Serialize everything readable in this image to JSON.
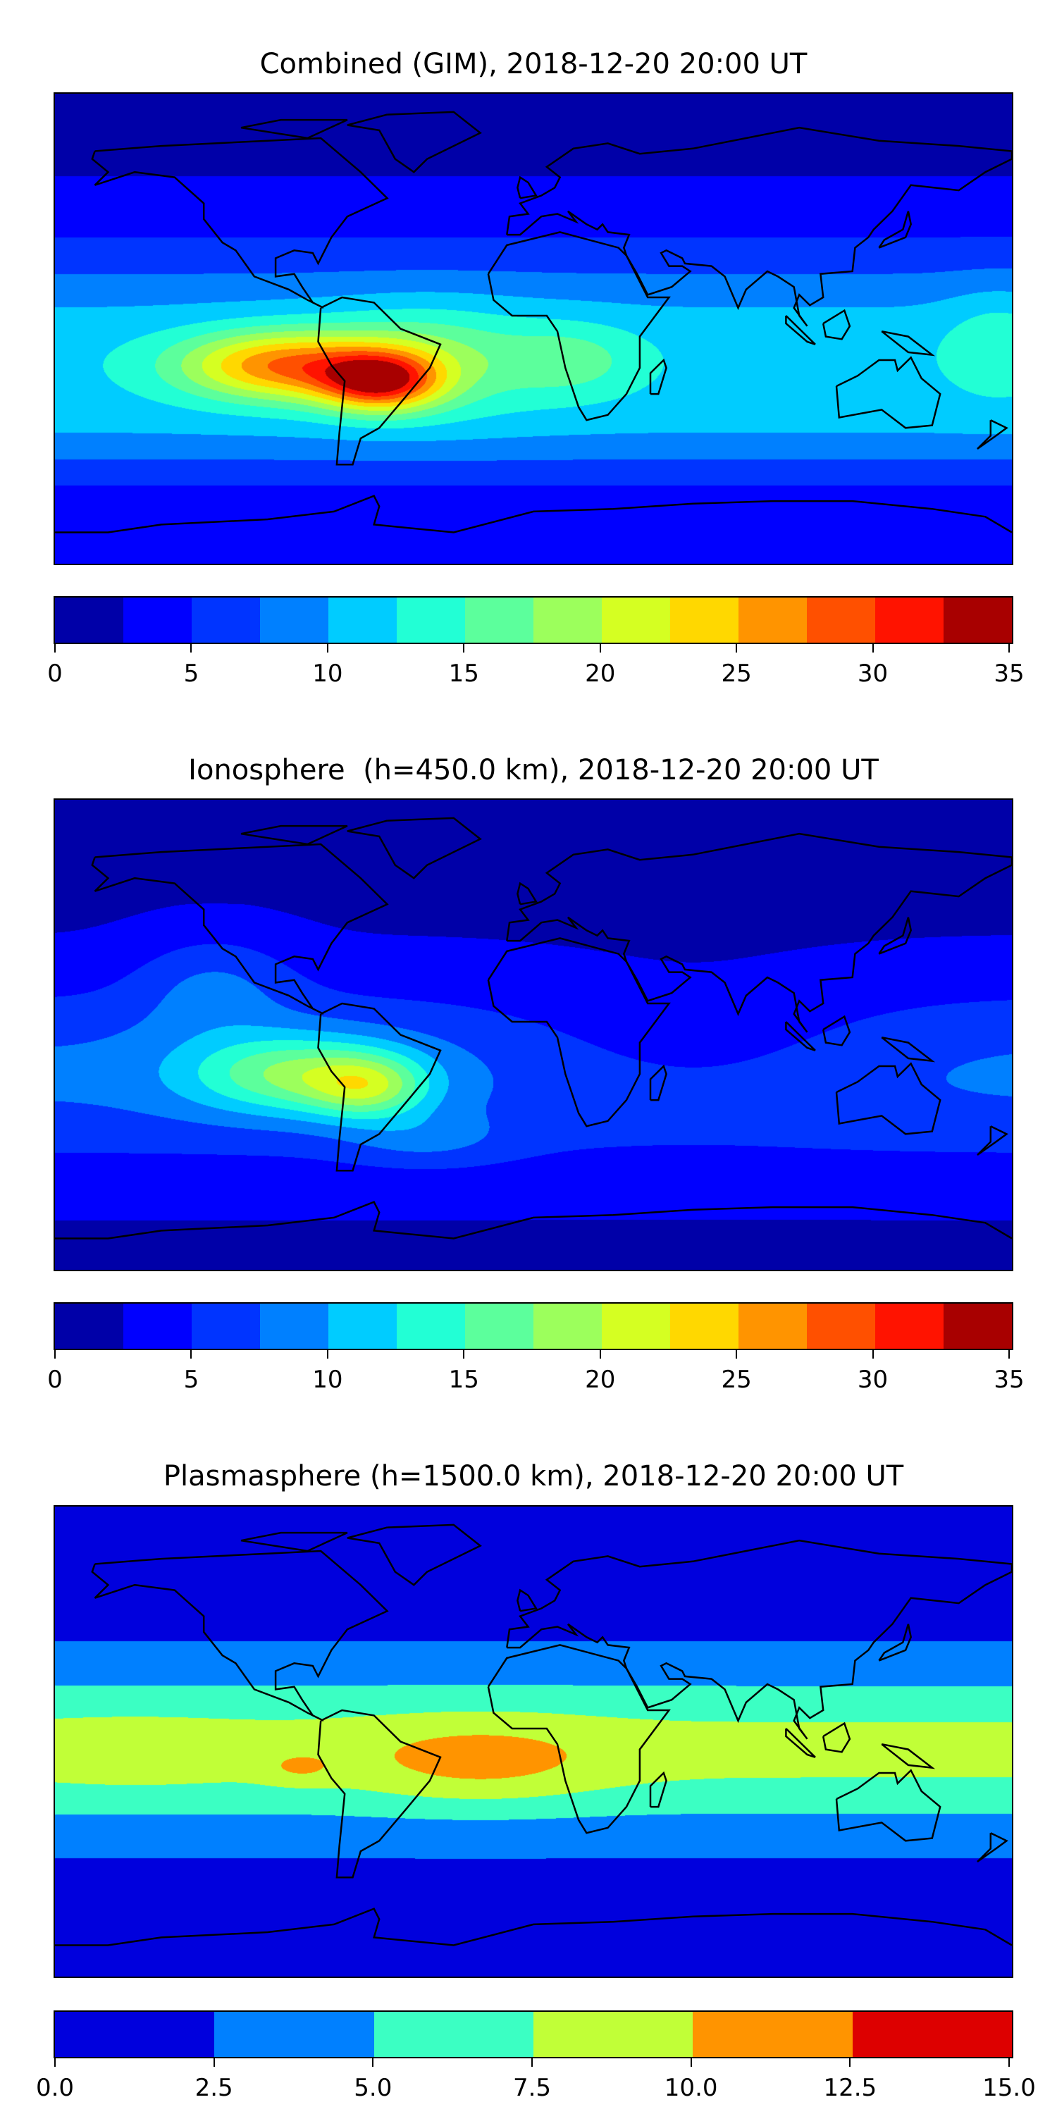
{
  "chart_data": [
    {
      "type": "heatmap",
      "title": "Combined (GIM), 2018-12-20 20:00 UT",
      "projection": "equirectangular world map",
      "lon_range": [
        -180,
        180
      ],
      "lat_range": [
        -90,
        90
      ],
      "colorbar": {
        "levels": [
          0,
          2.5,
          5,
          7.5,
          10,
          12.5,
          15,
          17.5,
          20,
          22.5,
          25,
          27.5,
          30,
          32.5,
          35
        ],
        "colors": [
          "#0000a8",
          "#0000ff",
          "#0034ff",
          "#0080ff",
          "#00ccff",
          "#22ffd5",
          "#5cff9c",
          "#9cff5c",
          "#d5ff22",
          "#ffd800",
          "#ff9400",
          "#ff5000",
          "#ff1300",
          "#a80000"
        ],
        "tick_labels": [
          "0",
          "5",
          "10",
          "15",
          "20",
          "25",
          "30",
          "35"
        ],
        "tick_values": [
          0,
          5,
          10,
          15,
          20,
          25,
          30,
          35
        ]
      },
      "features": [
        {
          "region": "equatorial South America / South Pacific",
          "lon": -85,
          "lat": -15,
          "peak_value": 27
        },
        {
          "region": "central South America",
          "lon": -55,
          "lat": -18,
          "peak_value": 30
        },
        {
          "region": "high northern latitudes",
          "value_range": [
            0,
            5
          ]
        },
        {
          "region": "Eastern hemisphere tropics",
          "value_range": [
            7.5,
            12.5
          ]
        }
      ]
    },
    {
      "type": "heatmap",
      "title": "Ionosphere  (h=450.0 km), 2018-12-20 20:00 UT",
      "projection": "equirectangular world map",
      "lon_range": [
        -180,
        180
      ],
      "lat_range": [
        -90,
        90
      ],
      "colorbar": {
        "levels": [
          0,
          2.5,
          5,
          7.5,
          10,
          12.5,
          15,
          17.5,
          20,
          22.5,
          25,
          27.5,
          30,
          32.5,
          35
        ],
        "colors": [
          "#0000a8",
          "#0000ff",
          "#0034ff",
          "#0080ff",
          "#00ccff",
          "#22ffd5",
          "#5cff9c",
          "#9cff5c",
          "#d5ff22",
          "#ffd800",
          "#ff9400",
          "#ff5000",
          "#ff1300",
          "#a80000"
        ],
        "tick_labels": [
          "0",
          "5",
          "10",
          "15",
          "20",
          "25",
          "30",
          "35"
        ],
        "tick_values": [
          0,
          5,
          10,
          15,
          20,
          25,
          30,
          35
        ]
      },
      "features": [
        {
          "region": "South America / East Pacific",
          "lon": -75,
          "lat": -15,
          "peak_value": 21
        },
        {
          "region": "Africa / Asia",
          "value_range": [
            0,
            2.5
          ]
        }
      ]
    },
    {
      "type": "heatmap",
      "title": "Plasmasphere (h=1500.0 km), 2018-12-20 20:00 UT",
      "projection": "equirectangular world map",
      "lon_range": [
        -180,
        180
      ],
      "lat_range": [
        -90,
        90
      ],
      "colorbar": {
        "levels": [
          0,
          2.5,
          5,
          7.5,
          10,
          12.5,
          15
        ],
        "colors": [
          "#0000dd",
          "#0080ff",
          "#3bffc3",
          "#c1ff37",
          "#ff9400",
          "#dd0000"
        ],
        "tick_labels": [
          "0.0",
          "2.5",
          "5.0",
          "7.5",
          "10.0",
          "12.5",
          "15.0"
        ],
        "tick_values": [
          0,
          2.5,
          5,
          7.5,
          10,
          12.5,
          15
        ]
      },
      "features": [
        {
          "region": "South America / South Atlantic / Africa",
          "lon": -20,
          "lat": -10,
          "peak_value": 11
        },
        {
          "region": "East Pacific",
          "lon": -85,
          "lat": -10,
          "peak_value": 10.5
        },
        {
          "region": "equatorial band",
          "value_range": [
            5,
            10
          ]
        },
        {
          "region": "polar regions",
          "value_range": [
            0,
            2.5
          ]
        }
      ]
    }
  ]
}
